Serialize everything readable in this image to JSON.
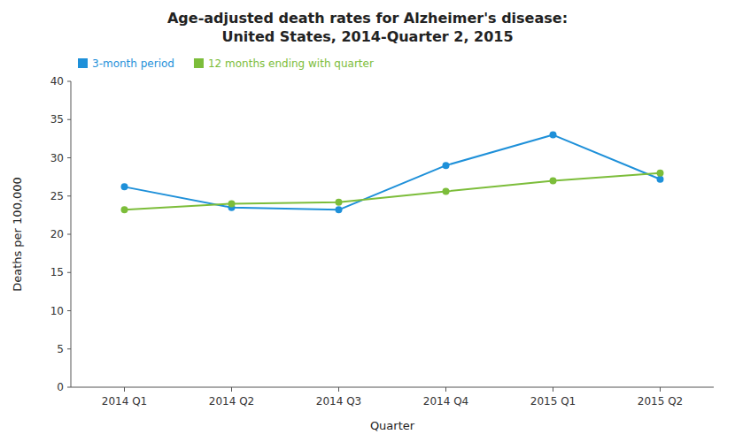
{
  "chart_data": {
    "type": "line",
    "title": "Age-adjusted death rates for Alzheimer's disease:",
    "subtitle": "United States, 2014-Quarter 2, 2015",
    "x_label": "Quarter",
    "y_label": "Deaths per 100,000",
    "categories": [
      "2014 Q1",
      "2014 Q2",
      "2014 Q3",
      "2014 Q4",
      "2015 Q1",
      "2015 Q2"
    ],
    "series": [
      {
        "name": "3-month period",
        "color": "#1e90d9",
        "values": [
          26.2,
          23.5,
          23.2,
          29.0,
          33.0,
          27.2
        ]
      },
      {
        "name": "12 months ending with quarter",
        "color": "#7cbd3a",
        "values": [
          23.2,
          24.0,
          24.2,
          25.6,
          27.0,
          28.0
        ]
      }
    ],
    "ylim": [
      0,
      40
    ],
    "yticks": [
      0,
      5,
      10,
      15,
      20,
      25,
      30,
      35,
      40
    ],
    "grid": false,
    "legend": "upper left",
    "marker": "circle"
  }
}
